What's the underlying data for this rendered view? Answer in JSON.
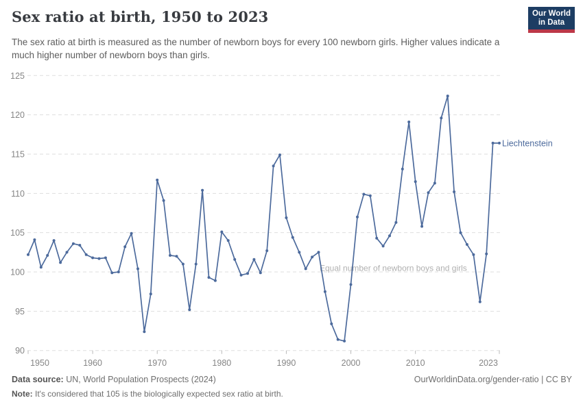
{
  "header": {
    "title": "Sex ratio at birth, 1950 to 2023",
    "subtitle": "The sex ratio at birth is measured as the number of newborn boys for every 100 newborn girls. Higher values indicate a much higher number of newborn boys than girls."
  },
  "logo": {
    "line1": "Our World",
    "line2": "in Data",
    "bg_color": "#1d3d63",
    "stripe_color": "#bc3848"
  },
  "chart_data": {
    "type": "line",
    "title": "Sex ratio at birth, 1950 to 2023",
    "series": [
      {
        "name": "Liechtenstein",
        "color": "#4c6a9c",
        "values": [
          102.2,
          104.1,
          100.6,
          102.1,
          104.0,
          101.2,
          102.5,
          103.6,
          103.4,
          102.2,
          101.8,
          101.7,
          101.8,
          99.9,
          100.0,
          103.2,
          104.9,
          100.4,
          92.4,
          97.2,
          111.7,
          109.1,
          102.1,
          102.0,
          101.0,
          95.2,
          101.0,
          110.4,
          99.3,
          98.9,
          105.1,
          104.0,
          101.6,
          99.6,
          99.8,
          101.6,
          99.9,
          102.7,
          113.5,
          114.9,
          106.9,
          104.4,
          102.5,
          100.4,
          101.9,
          102.5,
          97.5,
          93.4,
          91.4,
          91.2,
          98.4,
          107.0,
          109.9,
          109.7,
          104.3,
          103.3,
          104.6,
          106.3,
          113.1,
          119.1,
          111.5,
          105.8,
          110.1,
          111.3,
          119.6,
          122.4,
          110.2,
          105.0,
          103.5,
          102.2,
          96.2,
          102.3,
          116.4,
          116.4
        ]
      }
    ],
    "x_start": 1950,
    "x_end": 2023,
    "xlim": [
      1950,
      2023
    ],
    "ylim": [
      90,
      125
    ],
    "x_ticks": [
      {
        "year": 1950,
        "label": "1950",
        "offset": 17
      },
      {
        "year": 1960,
        "label": "1960",
        "offset": 0
      },
      {
        "year": 1970,
        "label": "1970",
        "offset": 0
      },
      {
        "year": 1980,
        "label": "1980",
        "offset": 0
      },
      {
        "year": 1990,
        "label": "1990",
        "offset": 0
      },
      {
        "year": 2000,
        "label": "2000",
        "offset": 0
      },
      {
        "year": 2010,
        "label": "2010",
        "offset": 0
      },
      {
        "year": 2023,
        "label": "2023",
        "offset": -16
      }
    ],
    "y_ticks": [
      90,
      95,
      100,
      105,
      110,
      115,
      120,
      125
    ],
    "annotation": "Equal number of newborn boys and girls",
    "grid": true,
    "legend_position": "end-of-line-label",
    "colors": {
      "gridline": "#dedede",
      "tick_label": "#858585",
      "tick_mark": "#b9b9b9",
      "annotation": "#b0b0b0"
    }
  },
  "footer": {
    "source_label": "Data source:",
    "source_text": " UN, World Population Prospects (2024)",
    "note_label": "Note:",
    "note_text": " It's considered that 105 is the biologically expected sex ratio at birth.",
    "credit": "OurWorldinData.org/gender-ratio | CC BY"
  }
}
